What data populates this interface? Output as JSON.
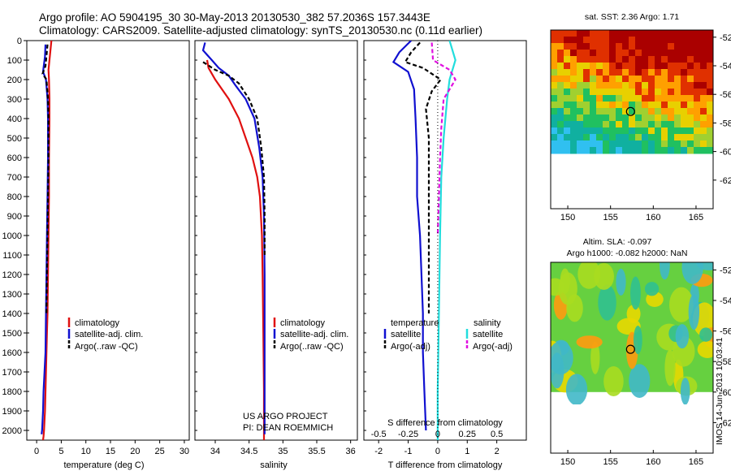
{
  "header": {
    "line1": "Argo profile: AO 5904195_30 30-May-2013 20130530_382 57.2036S 157.3443E",
    "line2": "Climatology: CARS2009. Satellite-adjusted climatology: synTS_20130530.nc (0.11d earlier)"
  },
  "colors": {
    "climatology": "#e01010",
    "satellite": "#1010d0",
    "argo": "#000000",
    "salinity_sat": "#22dddd",
    "salinity_argo": "#e010e0"
  },
  "chart_data": [
    {
      "type": "line",
      "panel": "temperature",
      "xlabel": "temperature (deg C)",
      "ylabel": "",
      "xlim": [
        -2,
        31
      ],
      "ylim": [
        2050,
        0
      ],
      "xticks": [
        "0",
        "5",
        "10",
        "15",
        "20",
        "25",
        "30"
      ],
      "yticks": [
        "0",
        "100",
        "200",
        "300",
        "400",
        "500",
        "600",
        "700",
        "800",
        "900",
        "1000",
        "1100",
        "1200",
        "1300",
        "1400",
        "1500",
        "1600",
        "1700",
        "1800",
        "1900",
        "2000"
      ],
      "legend": [
        "climatology",
        "satellite-adj. clim.",
        "Argo(..raw -QC)"
      ],
      "series": [
        {
          "name": "climatology",
          "x": [
            3.0,
            2.8,
            2.6,
            2.4,
            2.5,
            2.6,
            2.6,
            2.5,
            2.5,
            2.4,
            2.3,
            2.2,
            2.1,
            2.0,
            1.9,
            1.8,
            1.7,
            1.6,
            1.5,
            1.4,
            1.3
          ],
          "y": [
            0,
            50,
            100,
            150,
            200,
            300,
            400,
            600,
            800,
            1000,
            1200,
            1400,
            1500,
            1600,
            1700,
            1800,
            1900,
            1950,
            2000,
            2030,
            2050
          ]
        },
        {
          "name": "satellite-adj. clim.",
          "x": [
            1.8,
            1.7,
            1.5,
            1.3,
            1.9,
            2.2,
            2.3,
            2.3,
            2.2,
            2.1,
            2.0,
            1.9,
            1.8,
            1.6,
            1.4,
            1.3,
            1.2,
            1.1,
            1.0
          ],
          "y": [
            20,
            80,
            120,
            160,
            200,
            300,
            400,
            600,
            800,
            1000,
            1200,
            1400,
            1600,
            1700,
            1800,
            1900,
            1950,
            2000,
            2020
          ]
        },
        {
          "name": "Argo(..raw -QC)",
          "x": [
            2.2,
            2.0,
            1.8,
            1.2,
            2.0,
            2.3,
            2.4,
            2.4,
            2.3,
            2.2,
            2.1,
            2.0
          ],
          "y": [
            20,
            80,
            130,
            170,
            200,
            300,
            400,
            600,
            800,
            1000,
            1200,
            1400
          ]
        }
      ]
    },
    {
      "type": "line",
      "panel": "salinity",
      "xlabel": "salinity",
      "xlim": [
        33.7,
        36.1
      ],
      "ylim": [
        2050,
        0
      ],
      "xticks": [
        "34",
        "34.5",
        "35",
        "35.5",
        "36"
      ],
      "legend": [
        "climatology",
        "satellite-adj. clim.",
        "Argo(..raw -QC)"
      ],
      "annotation": [
        "US ARGO PROJECT",
        "PI: DEAN ROEMMICH"
      ],
      "series": [
        {
          "name": "climatology",
          "x": [
            33.88,
            33.9,
            34.0,
            34.2,
            34.35,
            34.45,
            34.55,
            34.62,
            34.66,
            34.69,
            34.7,
            34.71,
            34.72,
            34.72
          ],
          "y": [
            100,
            140,
            200,
            300,
            400,
            500,
            600,
            700,
            800,
            1000,
            1200,
            1500,
            1800,
            2050
          ]
        },
        {
          "name": "satellite-adj. clim.",
          "x": [
            33.85,
            33.82,
            33.95,
            34.05,
            34.2,
            34.3,
            34.45,
            34.58,
            34.65,
            34.7,
            34.72,
            34.73,
            34.73,
            34.73,
            34.73
          ],
          "y": [
            10,
            50,
            100,
            140,
            180,
            230,
            300,
            400,
            550,
            700,
            900,
            1200,
            1500,
            1800,
            2020
          ]
        },
        {
          "name": "Argo(..raw -QC)",
          "x": [
            33.82,
            34.0,
            34.2,
            34.35,
            34.5,
            34.62,
            34.68,
            34.72,
            34.73,
            34.73
          ],
          "y": [
            110,
            150,
            180,
            220,
            300,
            400,
            550,
            700,
            900,
            1100
          ]
        }
      ]
    },
    {
      "type": "line",
      "panel": "difference",
      "xlabel": "T difference from climatology",
      "xlabel2": "S difference from climatology",
      "xlim": [
        -2.5,
        3
      ],
      "ylim": [
        2050,
        0
      ],
      "xticks": [
        "-2",
        "-1",
        "0",
        "1",
        "2"
      ],
      "xticks2": [
        "-0.5",
        "-0.25",
        "0",
        "0.25",
        "0.5"
      ],
      "legend_left_title": "temperature",
      "legend_right_title": "salinity",
      "legend": [
        "satellite",
        "Argo(-adj)",
        "satellite",
        "Argo(-adj)"
      ],
      "series": [
        {
          "name": "temperature satellite",
          "x": [
            -0.9,
            -1.3,
            -1.5,
            -1.0,
            -0.8,
            -0.75,
            -0.7,
            -0.7,
            -0.6,
            -0.55,
            -0.5,
            -0.5,
            -0.45,
            -0.4
          ],
          "y": [
            0,
            60,
            110,
            160,
            250,
            400,
            600,
            800,
            1000,
            1200,
            1400,
            1600,
            1800,
            2000
          ]
        },
        {
          "name": "temperature Argo(-adj)",
          "x": [
            -0.6,
            -0.9,
            -1.1,
            -0.5,
            -0.2,
            0.1,
            -0.2,
            -0.4,
            -0.3,
            -0.3,
            -0.3,
            -0.3,
            -0.3
          ],
          "y": [
            10,
            60,
            110,
            140,
            170,
            200,
            260,
            350,
            500,
            700,
            900,
            1100,
            1400
          ]
        },
        {
          "name": "salinity satellite",
          "x": [
            0.1,
            0.15,
            0.1,
            0.08,
            0.05,
            0.03,
            0.02,
            0.01,
            0.0,
            0.0
          ],
          "y": [
            0,
            100,
            200,
            300,
            500,
            700,
            1000,
            1400,
            1800,
            2050
          ]
        },
        {
          "name": "salinity Argo(-adj)",
          "x": [
            -0.05,
            -0.04,
            0.1,
            0.15,
            0.1,
            0.05,
            0.03,
            0.02,
            0.01,
            0.0
          ],
          "y": [
            10,
            100,
            150,
            200,
            250,
            300,
            450,
            600,
            800,
            1000
          ]
        }
      ]
    },
    {
      "type": "heatmap",
      "panel": "sst-map",
      "title": "sat. SST: 2.36 Argo: 1.71",
      "xticks": [
        "150",
        "155",
        "160",
        "165"
      ],
      "yticks": [
        "-52",
        "-54",
        "-56",
        "-58",
        "-60",
        "-62"
      ],
      "xlim": [
        148,
        167
      ],
      "ylim": [
        -64,
        -51.5
      ],
      "float_position": {
        "lon": 157.34,
        "lat": -57.2
      }
    },
    {
      "type": "heatmap",
      "panel": "sla-map",
      "title": "Altim. SLA: -0.097",
      "subtitle": "Argo h1000: -0.082 h2000: NaN",
      "xticks": [
        "150",
        "155",
        "160",
        "165"
      ],
      "yticks": [
        "-52",
        "-54",
        "-56",
        "-58",
        "-60",
        "-62"
      ],
      "xlim": [
        148,
        167
      ],
      "ylim": [
        -64,
        -51.5
      ],
      "float_position": {
        "lon": 157.34,
        "lat": -57.2
      },
      "side_note": "IMOS 14-Jun-2013 10:03:41"
    }
  ]
}
